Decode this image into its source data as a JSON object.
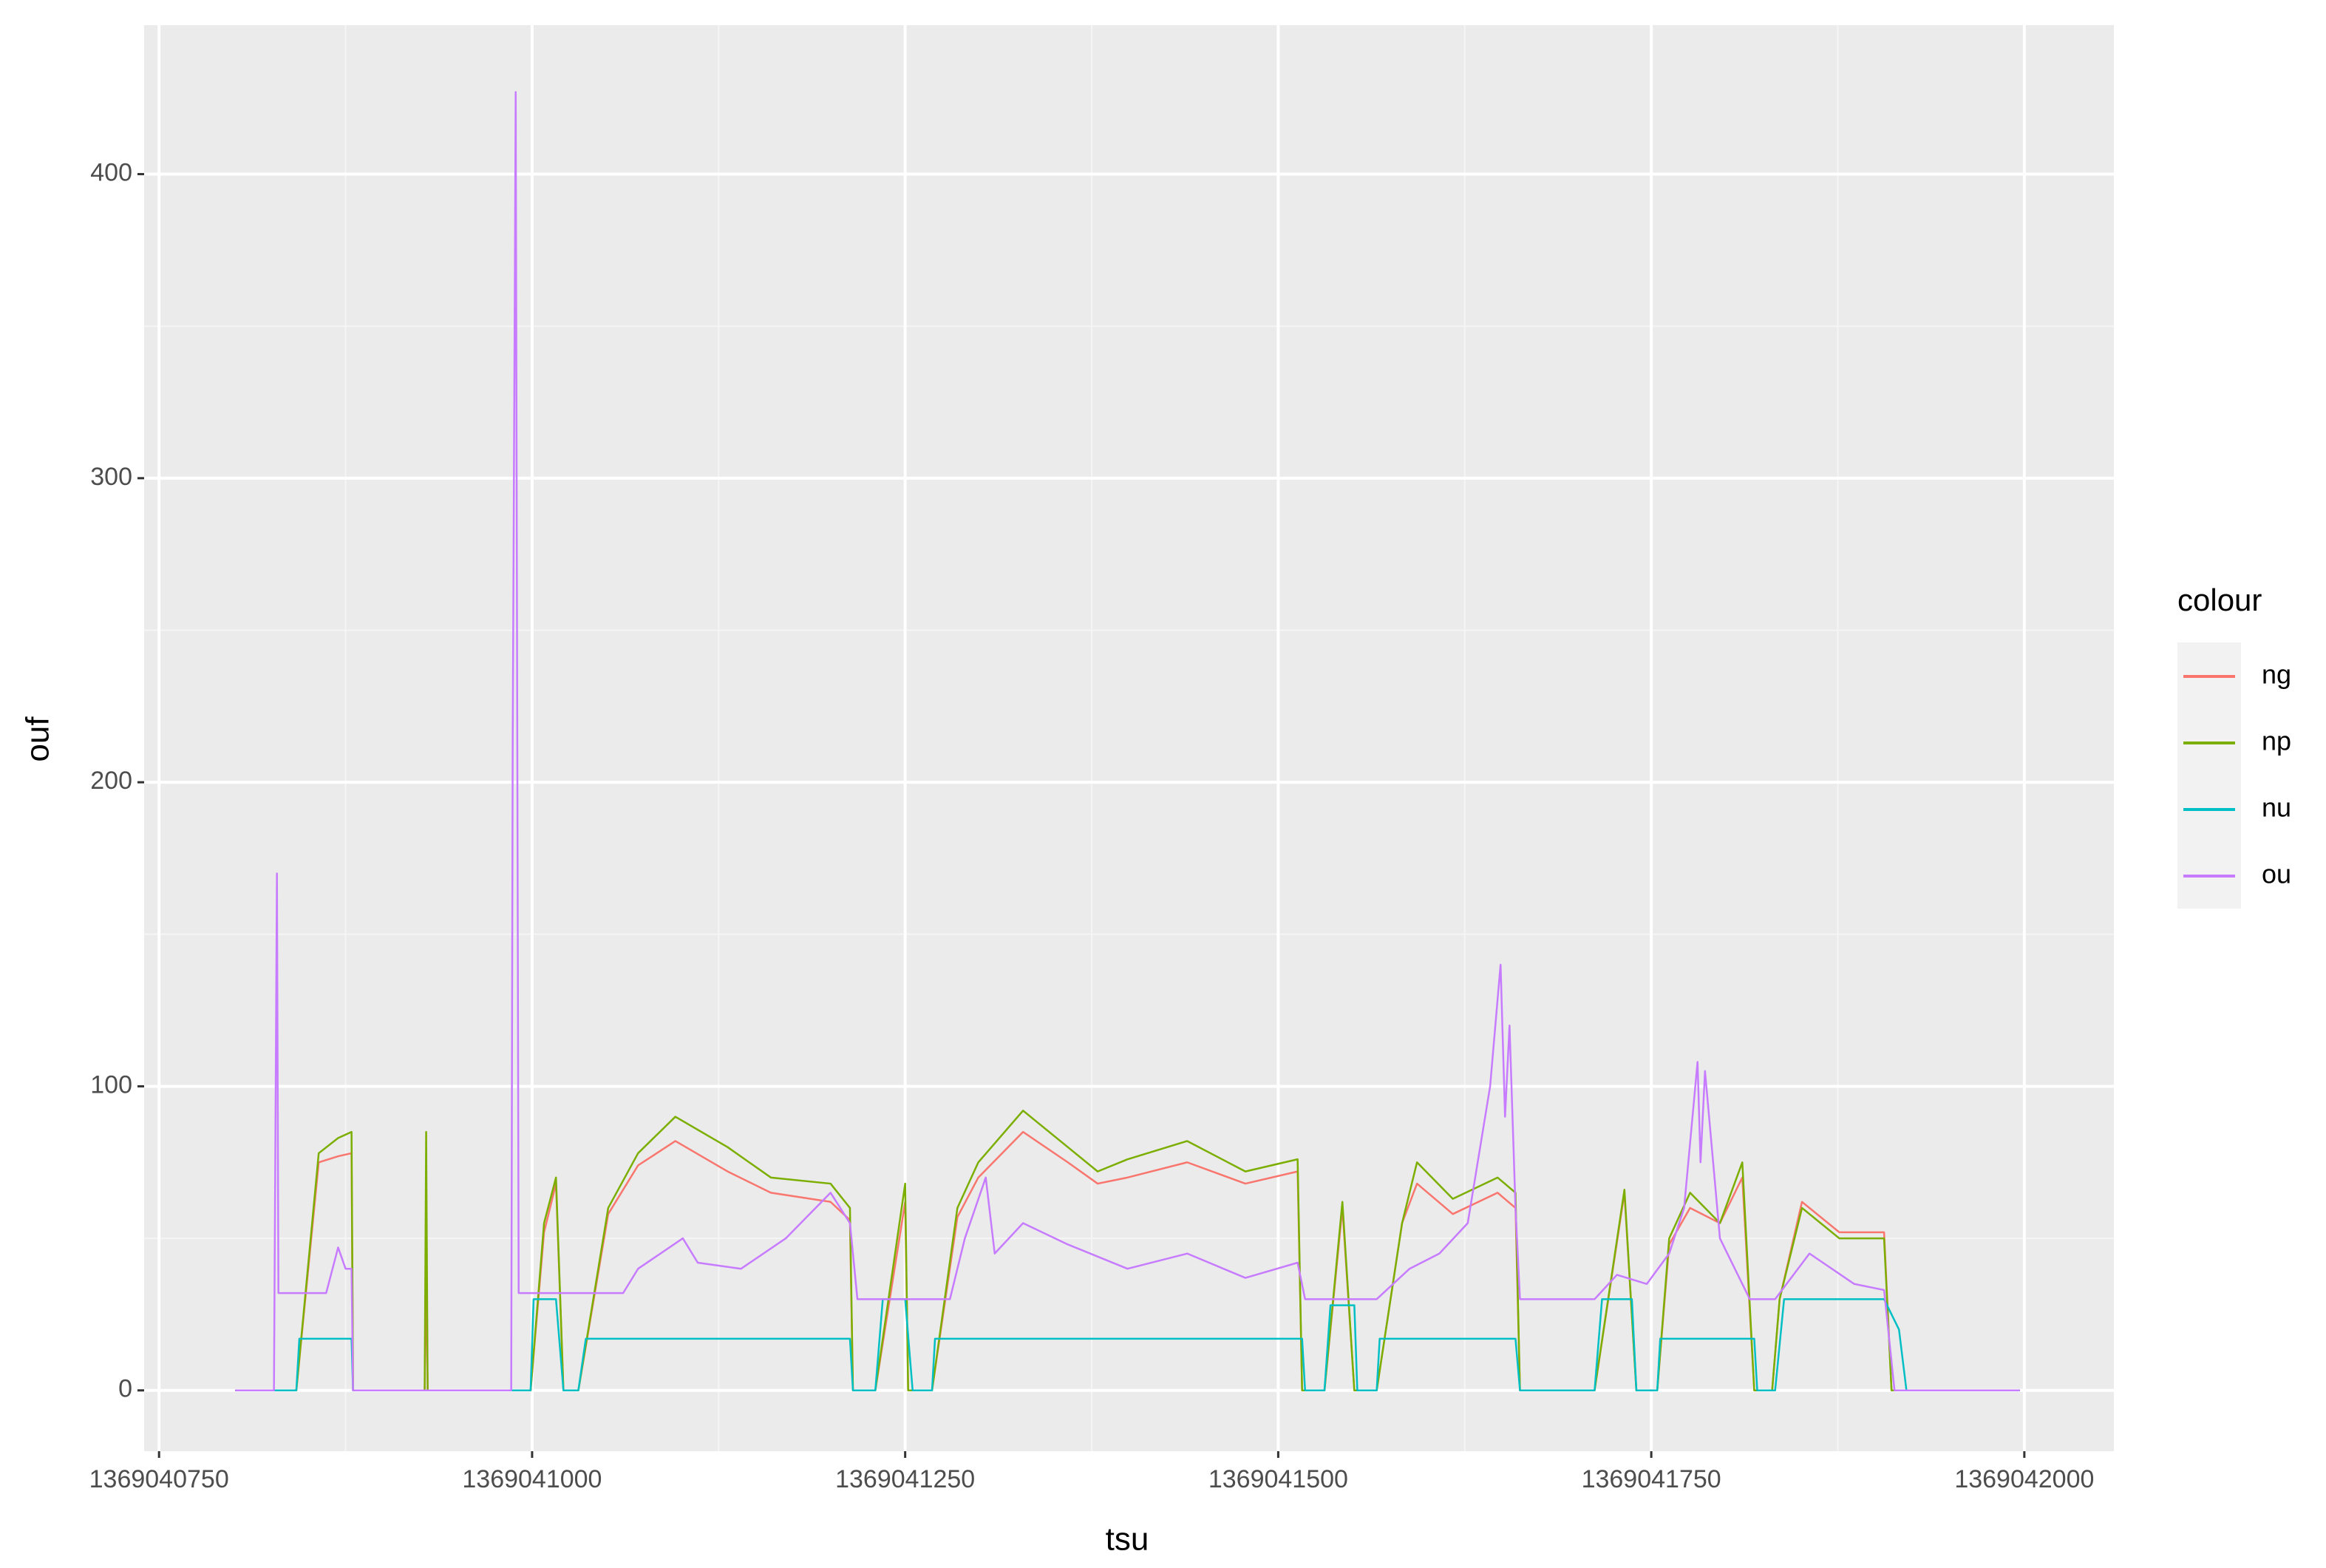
{
  "chart_data": {
    "type": "line",
    "x_label": "tsu",
    "y_label": "ouf",
    "xlim": [
      1369040740,
      1369042060
    ],
    "ylim": [
      -20,
      449
    ],
    "xticks": [
      1369040750,
      1369041000,
      1369041250,
      1369041500,
      1369041750,
      1369042000
    ],
    "yticks": [
      0,
      100,
      200,
      300,
      400
    ],
    "grid": true,
    "legend_title": "colour",
    "legend_position": "right",
    "series": [
      {
        "name": "ng",
        "color": "#F8766D",
        "x": [
          1369040801,
          1369040842,
          1369040857,
          1369040870,
          1369040879,
          1369040880,
          1369040928,
          1369040929,
          1369040930,
          1369040999,
          1369041008,
          1369041016,
          1369041021,
          1369041031,
          1369041051,
          1369041071,
          1369041096,
          1369041131,
          1369041160,
          1369041200,
          1369041213,
          1369041215,
          1369041230,
          1369041250,
          1369041252,
          1369041268,
          1369041285,
          1369041299,
          1369041329,
          1369041359,
          1369041379,
          1369041399,
          1369041439,
          1369041478,
          1369041513,
          1369041516,
          1369041531,
          1369041543,
          1369041551,
          1369041566,
          1369041583,
          1369041593,
          1369041617,
          1369041647,
          1369041659,
          1369041662,
          1369041712,
          1369041732,
          1369041740,
          1369041754,
          1369041762,
          1369041776,
          1369041796,
          1369041811,
          1369041819,
          1369041831,
          1369041836,
          1369041851,
          1369041876,
          1369041906,
          1369041911,
          1369041997
        ],
        "values": [
          0,
          0,
          75,
          77,
          78,
          0,
          0,
          40,
          0,
          0,
          52,
          68,
          0,
          0,
          58,
          74,
          82,
          72,
          65,
          62,
          56,
          0,
          0,
          62,
          0,
          0,
          57,
          70,
          85,
          75,
          68,
          70,
          75,
          68,
          72,
          0,
          0,
          60,
          0,
          0,
          55,
          68,
          58,
          65,
          60,
          0,
          0,
          65,
          0,
          0,
          48,
          60,
          55,
          70,
          0,
          0,
          30,
          62,
          52,
          52,
          0,
          0
        ]
      },
      {
        "name": "np",
        "color": "#7CAE00",
        "x": [
          1369040801,
          1369040842,
          1369040857,
          1369040870,
          1369040879,
          1369040880,
          1369040928,
          1369040929,
          1369040930,
          1369040999,
          1369041008,
          1369041016,
          1369041021,
          1369041031,
          1369041051,
          1369041071,
          1369041096,
          1369041131,
          1369041160,
          1369041200,
          1369041213,
          1369041215,
          1369041230,
          1369041250,
          1369041252,
          1369041268,
          1369041285,
          1369041299,
          1369041329,
          1369041359,
          1369041379,
          1369041399,
          1369041439,
          1369041478,
          1369041513,
          1369041516,
          1369041531,
          1369041543,
          1369041551,
          1369041566,
          1369041583,
          1369041593,
          1369041617,
          1369041647,
          1369041659,
          1369041662,
          1369041712,
          1369041732,
          1369041740,
          1369041754,
          1369041762,
          1369041776,
          1369041796,
          1369041811,
          1369041819,
          1369041831,
          1369041836,
          1369041851,
          1369041876,
          1369041906,
          1369041911,
          1369041997
        ],
        "values": [
          0,
          0,
          78,
          83,
          85,
          0,
          0,
          85,
          0,
          0,
          55,
          70,
          0,
          0,
          60,
          78,
          90,
          80,
          70,
          68,
          60,
          0,
          0,
          68,
          0,
          0,
          60,
          75,
          92,
          80,
          72,
          76,
          82,
          72,
          76,
          0,
          0,
          62,
          0,
          0,
          55,
          75,
          63,
          70,
          65,
          0,
          0,
          66,
          0,
          0,
          50,
          65,
          55,
          75,
          0,
          0,
          30,
          60,
          50,
          50,
          0,
          0
        ]
      },
      {
        "name": "nu",
        "color": "#00BFC4",
        "x": [
          1369040801,
          1369040842,
          1369040844,
          1369040879,
          1369040880,
          1369040999,
          1369041001,
          1369041016,
          1369041021,
          1369041031,
          1369041036,
          1369041213,
          1369041215,
          1369041230,
          1369041235,
          1369041250,
          1369041255,
          1369041268,
          1369041270,
          1369041516,
          1369041518,
          1369041531,
          1369041535,
          1369041551,
          1369041553,
          1369041566,
          1369041568,
          1369041659,
          1369041662,
          1369041712,
          1369041717,
          1369041737,
          1369041740,
          1369041754,
          1369041756,
          1369041819,
          1369041821,
          1369041833,
          1369041839,
          1369041906,
          1369041916,
          1369041921,
          1369041997
        ],
        "values": [
          0,
          0,
          17,
          17,
          0,
          0,
          30,
          30,
          0,
          0,
          17,
          17,
          0,
          0,
          30,
          30,
          0,
          0,
          17,
          17,
          0,
          0,
          28,
          28,
          0,
          0,
          17,
          17,
          0,
          0,
          30,
          30,
          0,
          0,
          17,
          17,
          0,
          0,
          30,
          30,
          20,
          0,
          0
        ]
      },
      {
        "name": "ou",
        "color": "#C77CFF",
        "x": [
          1369040801,
          1369040827,
          1369040828,
          1369040829,
          1369040830,
          1369040862,
          1369040870,
          1369040875,
          1369040879,
          1369040880,
          1369040986,
          1369040987,
          1369040989,
          1369040991,
          1369041061,
          1369041071,
          1369041101,
          1369041111,
          1369041140,
          1369041170,
          1369041200,
          1369041213,
          1369041218,
          1369041280,
          1369041290,
          1369041304,
          1369041310,
          1369041329,
          1369041359,
          1369041399,
          1369041439,
          1369041478,
          1369041513,
          1369041518,
          1369041566,
          1369041588,
          1369041608,
          1369041627,
          1369041642,
          1369041649,
          1369041652,
          1369041655,
          1369041659,
          1369041662,
          1369041712,
          1369041727,
          1369041747,
          1369041762,
          1369041772,
          1369041781,
          1369041783,
          1369041786,
          1369041796,
          1369041801,
          1369041816,
          1369041833,
          1369041856,
          1369041886,
          1369041906,
          1369041913,
          1369041997
        ],
        "values": [
          0,
          0,
          85,
          170,
          32,
          32,
          47,
          40,
          40,
          0,
          0,
          213,
          427,
          32,
          32,
          40,
          50,
          42,
          40,
          50,
          65,
          55,
          30,
          30,
          50,
          70,
          45,
          55,
          48,
          40,
          45,
          37,
          42,
          30,
          30,
          40,
          45,
          55,
          100,
          140,
          90,
          120,
          60,
          30,
          30,
          38,
          35,
          45,
          60,
          108,
          75,
          105,
          50,
          45,
          30,
          30,
          45,
          35,
          33,
          0,
          0
        ]
      }
    ]
  }
}
